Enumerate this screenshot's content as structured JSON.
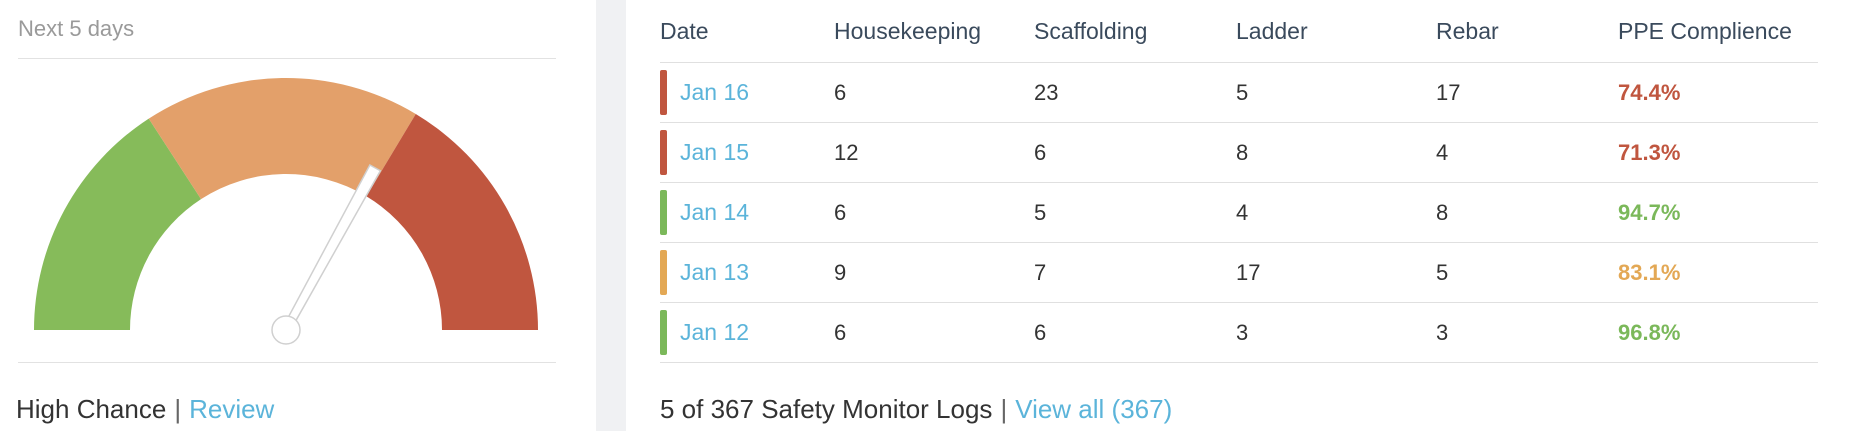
{
  "forecast": {
    "title": "Next 5 days",
    "status_label": "High Chance",
    "review_link": "Review",
    "gauge": {
      "level": 0.66,
      "colors": {
        "low": "#86bb5a",
        "mid": "#e3a06a",
        "high": "#c0563f"
      }
    }
  },
  "logs": {
    "columns": [
      "Date",
      "Housekeeping",
      "Scaffolding",
      "Ladder",
      "Rebar",
      "PPE Complience"
    ],
    "rows": [
      {
        "date": "Jan 16",
        "housekeeping": "6",
        "scaffolding": "23",
        "ladder": "5",
        "rebar": "17",
        "ppe": "74.4%",
        "color": "#c0563f"
      },
      {
        "date": "Jan 15",
        "housekeeping": "12",
        "scaffolding": "6",
        "ladder": "8",
        "rebar": "4",
        "ppe": "71.3%",
        "color": "#c0563f"
      },
      {
        "date": "Jan 14",
        "housekeeping": "6",
        "scaffolding": "5",
        "ladder": "4",
        "rebar": "8",
        "ppe": "94.7%",
        "color": "#7bb85a"
      },
      {
        "date": "Jan 13",
        "housekeeping": "9",
        "scaffolding": "7",
        "ladder": "17",
        "rebar": "5",
        "ppe": "83.1%",
        "color": "#e3a855"
      },
      {
        "date": "Jan 12",
        "housekeeping": "6",
        "scaffolding": "6",
        "ladder": "3",
        "rebar": "3",
        "ppe": "96.8%",
        "color": "#7bb85a"
      }
    ],
    "footer_count": "5 of 367 Safety Monitor Logs",
    "view_all_link": "View all (367)"
  }
}
